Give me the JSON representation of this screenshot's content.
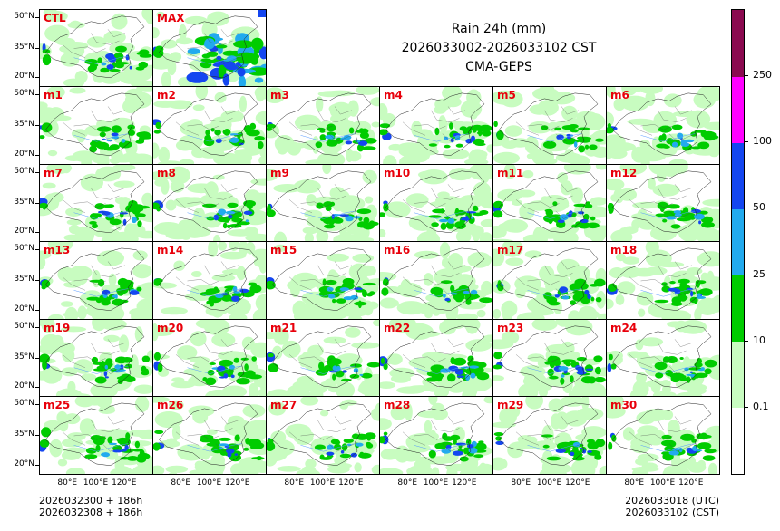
{
  "title": {
    "line1": "Rain 24h (mm)",
    "line2": "2026033002-2026033102 CST",
    "line3": "CMA-GEPS"
  },
  "colors": {
    "label": "#e8000b",
    "levels": [
      "#ffffff",
      "#c8fcc0",
      "#00cc00",
      "#22aaee",
      "#1446f0",
      "#ff00ff",
      "#8b0a50"
    ]
  },
  "chart_data": {
    "type": "heatmap",
    "variable": "24h accumulated rainfall",
    "units": "mm",
    "colorbar_levels": [
      "0.1",
      "10",
      "25",
      "50",
      "100",
      "250"
    ],
    "colorbar_classes": [
      {
        "range": "<0.1",
        "color": "#ffffff"
      },
      {
        "range": "0.1-10",
        "color": "#c8fcc0"
      },
      {
        "range": "10-25",
        "color": "#00cc00"
      },
      {
        "range": "25-50",
        "color": "#22aaee"
      },
      {
        "range": "50-100",
        "color": "#1446f0"
      },
      {
        "range": "100-250",
        "color": "#ff00ff"
      },
      {
        "range": ">250",
        "color": "#8b0a50"
      }
    ],
    "y_ticks": [
      "20°N",
      "35°N",
      "50°N"
    ],
    "x_ticks": [
      "80°E",
      "100°E",
      "120°E"
    ],
    "members": [
      {
        "name": "CTL",
        "intensity": 0.55
      },
      {
        "name": "MAX",
        "intensity": 1.0
      },
      {
        "name": "m1",
        "intensity": 0.5
      },
      {
        "name": "m2",
        "intensity": 0.4
      },
      {
        "name": "m3",
        "intensity": 0.55
      },
      {
        "name": "m4",
        "intensity": 0.45
      },
      {
        "name": "m5",
        "intensity": 0.4
      },
      {
        "name": "m6",
        "intensity": 0.55
      },
      {
        "name": "m7",
        "intensity": 0.55
      },
      {
        "name": "m8",
        "intensity": 0.45
      },
      {
        "name": "m9",
        "intensity": 0.55
      },
      {
        "name": "m10",
        "intensity": 0.6
      },
      {
        "name": "m11",
        "intensity": 0.45
      },
      {
        "name": "m12",
        "intensity": 0.65
      },
      {
        "name": "m13",
        "intensity": 0.5
      },
      {
        "name": "m14",
        "intensity": 0.45
      },
      {
        "name": "m15",
        "intensity": 0.5
      },
      {
        "name": "m16",
        "intensity": 0.4
      },
      {
        "name": "m17",
        "intensity": 0.55
      },
      {
        "name": "m18",
        "intensity": 0.6
      },
      {
        "name": "m19",
        "intensity": 0.65
      },
      {
        "name": "m20",
        "intensity": 0.55
      },
      {
        "name": "m21",
        "intensity": 0.45
      },
      {
        "name": "m22",
        "intensity": 0.7
      },
      {
        "name": "m23",
        "intensity": 0.7
      },
      {
        "name": "m24",
        "intensity": 0.55
      },
      {
        "name": "m25",
        "intensity": 0.55
      },
      {
        "name": "m26",
        "intensity": 0.55
      },
      {
        "name": "m27",
        "intensity": 0.5
      },
      {
        "name": "m28",
        "intensity": 0.6
      },
      {
        "name": "m29",
        "intensity": 0.55
      },
      {
        "name": "m30",
        "intensity": 0.65
      }
    ]
  },
  "footer": {
    "left_line1": "2026032300 + 186h",
    "left_line2": "2026032308 + 186h",
    "right_line1": "2026033018 (UTC)",
    "right_line2": "2026033102 (CST)"
  }
}
